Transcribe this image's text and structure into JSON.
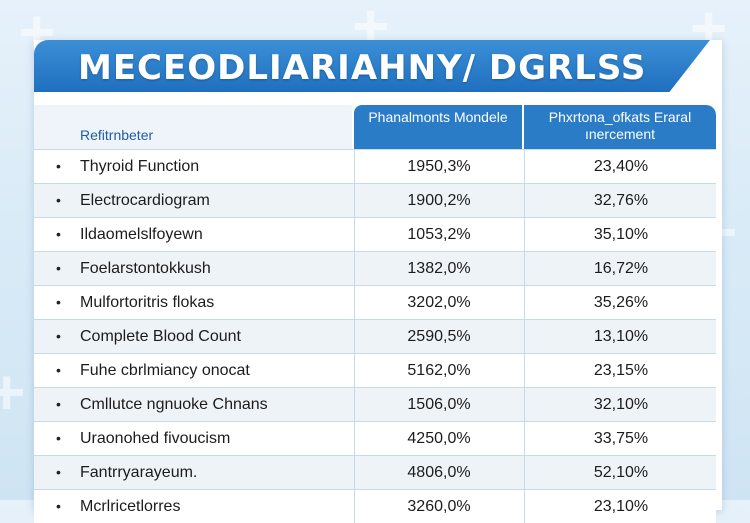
{
  "title": "MECEODLIARIAHNY/ DGRLSS",
  "header": {
    "left": "Refitrnbeter",
    "col1": "Phanalmonts Mondele",
    "col2": "Phxrtona_ofkats Eraral ınercement"
  },
  "rows": [
    {
      "name": "Thyroid Function",
      "c1": "1950,3%",
      "c2": "23,40%"
    },
    {
      "name": "Electrocardiogram",
      "c1": "1900,2%",
      "c2": "32,76%"
    },
    {
      "name": "Ildaomelslfoyewn",
      "c1": "1053,2%",
      "c2": "35,10%"
    },
    {
      "name": "Foelarstontokkush",
      "c1": "1382,0%",
      "c2": "16,72%"
    },
    {
      "name": "Mulfortoritris flokas",
      "c1": "3202,0%",
      "c2": "35,26%"
    },
    {
      "name": "Complete Blood Count",
      "c1": "2590,5%",
      "c2": "13,10%"
    },
    {
      "name": "Fuhe cbrlmiancy onocat",
      "c1": "5162,0%",
      "c2": "23,15%"
    },
    {
      "name": "Cmllutce ngnuoke Chnans",
      "c1": "1506,0%",
      "c2": "32,10%"
    },
    {
      "name": "Uraonohed fivoucism",
      "c1": "4250,0%",
      "c2": "33,75%"
    },
    {
      "name": "Fantrryarayeum.",
      "c1": "4806,0%",
      "c2": "52,10%"
    },
    {
      "name": "Mcrlricetlorres",
      "c1": "3260,0%",
      "c2": "23,10%"
    }
  ],
  "bullet": "•"
}
